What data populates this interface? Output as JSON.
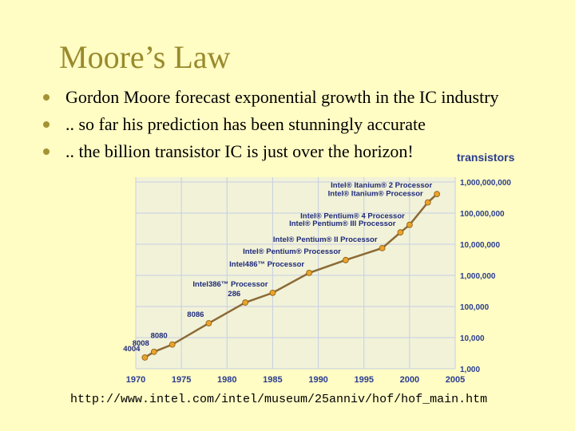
{
  "slide": {
    "title": "Moore’s Law",
    "bullets": [
      "Gordon Moore forecast exponential growth in the IC industry",
      ".. so far his prediction has been stunningly accurate",
      ".. the billion transistor IC is just over the horizon!"
    ],
    "url": "http://www.intel.com/intel/museum/25anniv/hof/hof_main.htm"
  },
  "colors": {
    "title": "#998a2c",
    "bullet": "#a39332",
    "line": "#8c6b36",
    "marker": "#e9a32c",
    "axis_text": "#2a3d8f",
    "label_text": "#1f2a7a",
    "grid": "#c7cfe3",
    "background": "#fffcc4"
  },
  "chart_data": {
    "type": "line",
    "title": "",
    "ylabel": "transistors",
    "y_scale": "log",
    "xlim": [
      1970,
      2005
    ],
    "ylim": [
      1000,
      1000000000
    ],
    "x_ticks": [
      "1970",
      "1975",
      "1980",
      "1985",
      "1990",
      "1995",
      "2000",
      "2005"
    ],
    "y_ticks": [
      {
        "value": 1000,
        "label": "1,000"
      },
      {
        "value": 10000,
        "label": "10,000"
      },
      {
        "value": 100000,
        "label": "100,000"
      },
      {
        "value": 1000000,
        "label": "1,000,000"
      },
      {
        "value": 10000000,
        "label": "10,000,000"
      },
      {
        "value": 100000000,
        "label": "100,000,000"
      },
      {
        "value": 1000000000,
        "label": "1,000,000,000"
      }
    ],
    "points": [
      {
        "x": 1971,
        "y": 2300,
        "label": "4004"
      },
      {
        "x": 1972,
        "y": 3500,
        "label": "8008"
      },
      {
        "x": 1974,
        "y": 6000,
        "label": "8080"
      },
      {
        "x": 1978,
        "y": 29000,
        "label": "8086"
      },
      {
        "x": 1982,
        "y": 134000,
        "label": "286"
      },
      {
        "x": 1985,
        "y": 275000,
        "label": "Intel386™ Processor"
      },
      {
        "x": 1989,
        "y": 1200000,
        "label": "Intel486™ Processor"
      },
      {
        "x": 1993,
        "y": 3100000,
        "label": "Intel® Pentium® Processor"
      },
      {
        "x": 1997,
        "y": 7500000,
        "label": "Intel® Pentium® II Processor"
      },
      {
        "x": 1999,
        "y": 24000000,
        "label": "Intel® Pentium® III Processor"
      },
      {
        "x": 2000,
        "y": 42000000,
        "label": "Intel® Pentium® 4 Processor"
      },
      {
        "x": 2002,
        "y": 220000000,
        "label": "Intel® Itanium® Processor"
      },
      {
        "x": 2003,
        "y": 410000000,
        "label": "Intel® Itanium® 2 Processor"
      }
    ],
    "grid": true,
    "legend": "none"
  }
}
